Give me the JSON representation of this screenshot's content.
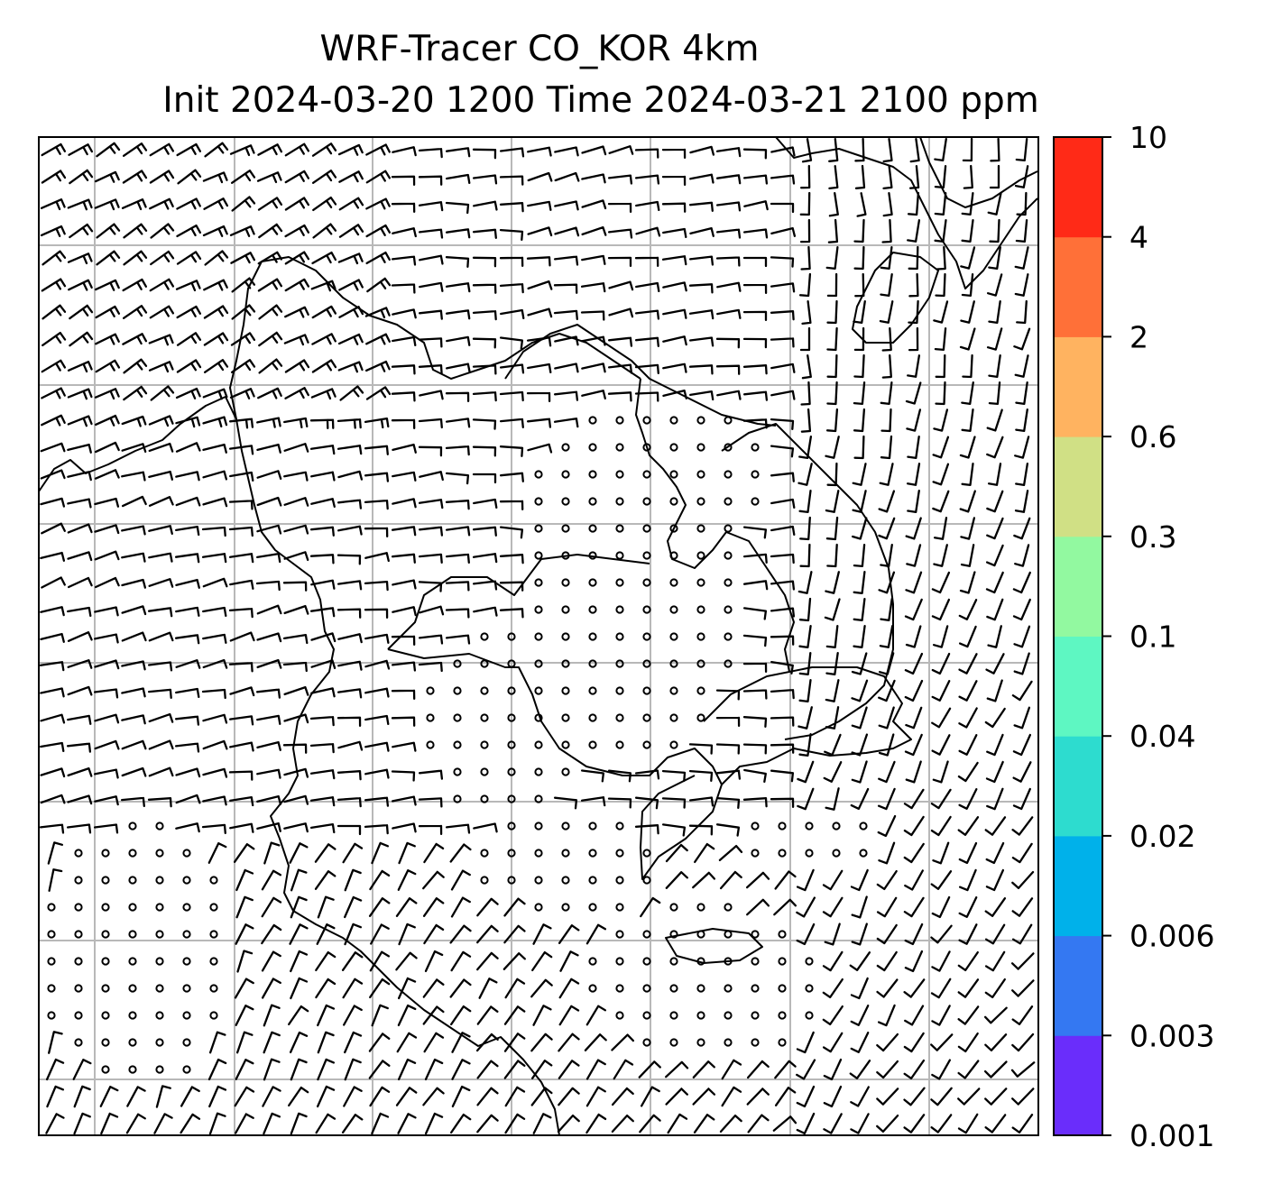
{
  "title": {
    "line1": "WRF-Tracer CO_KOR 4km",
    "line2": "Init 2024-03-20 1200 Time 2024-03-21 2100 ppm"
  },
  "colorbar": {
    "ticks": [
      "0.001",
      "0.003",
      "0.006",
      "0.02",
      "0.04",
      "0.1",
      "0.3",
      "0.6",
      "2",
      "4",
      "10"
    ],
    "colors": [
      "#6a2dfb",
      "#3478f2",
      "#00b1ea",
      "#2ddccf",
      "#5ef7c2",
      "#92f9a0",
      "#d0e085",
      "#ffb360",
      "#ff7038",
      "#ff2a17"
    ]
  },
  "map": {
    "background": "#ffffff",
    "coastline_color": "#000000",
    "gridline_color": "#b8b8b8",
    "grid": true,
    "overlay": "wind-barbs"
  }
}
